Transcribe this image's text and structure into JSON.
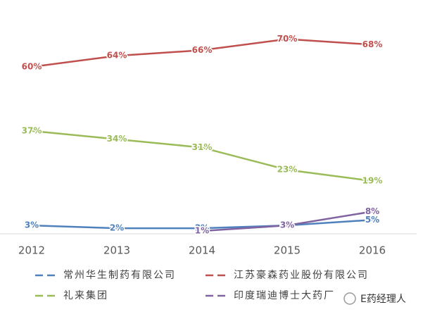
{
  "chart_data": {
    "type": "line",
    "categories": [
      "2012",
      "2013",
      "2014",
      "2015",
      "2016"
    ],
    "series": [
      {
        "name": "常州华生制药有限公司",
        "color": "#4f81bd",
        "values": [
          3,
          2,
          2,
          3,
          5
        ],
        "value_labels": [
          "3%",
          "2%",
          "2%",
          "3%",
          "5%"
        ]
      },
      {
        "name": "江苏豪森药业股份有限公司",
        "color": "#c0504d",
        "values": [
          60,
          64,
          66,
          70,
          68
        ],
        "value_labels": [
          "60%",
          "64%",
          "66%",
          "70%",
          "68%"
        ]
      },
      {
        "name": "礼来集团",
        "color": "#9bbb59",
        "values": [
          37,
          34,
          31,
          23,
          19
        ],
        "value_labels": [
          "37%",
          "34%",
          "31%",
          "23%",
          "19%"
        ]
      },
      {
        "name": "印度瑞迪博士大药厂",
        "color": "#8064a2",
        "values": [
          null,
          null,
          1,
          3,
          8
        ],
        "value_labels": [
          null,
          null,
          "1%",
          "3%",
          "8%"
        ]
      }
    ],
    "watermark": "E药经理人"
  }
}
